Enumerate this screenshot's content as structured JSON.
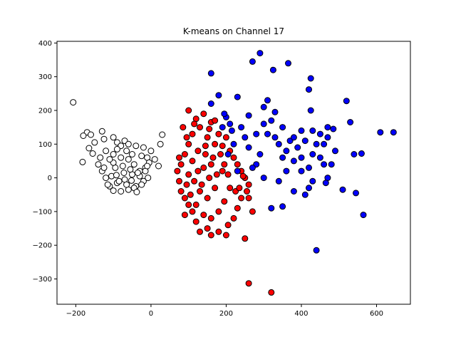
{
  "chart_data": {
    "type": "scatter",
    "title": "K-means on Channel 17",
    "xlabel": "",
    "ylabel": "",
    "xlim": [
      -250,
      690
    ],
    "ylim": [
      -375,
      405
    ],
    "xticks": [
      -200,
      0,
      200,
      400,
      600
    ],
    "yticks": [
      -300,
      -200,
      -100,
      0,
      100,
      200,
      300,
      400
    ],
    "grid": false,
    "legend": "none",
    "series": [
      {
        "color": "#ffffff",
        "points": [
          [
            -207,
            224
          ],
          [
            -170,
            135
          ],
          [
            -180,
            125
          ],
          [
            -160,
            128
          ],
          [
            -182,
            47
          ],
          [
            -165,
            88
          ],
          [
            -150,
            105
          ],
          [
            -155,
            72
          ],
          [
            -130,
            138
          ],
          [
            -125,
            115
          ],
          [
            -100,
            120
          ],
          [
            -90,
            105
          ],
          [
            -80,
            95
          ],
          [
            -70,
            110
          ],
          [
            -60,
            100
          ],
          [
            -40,
            95
          ],
          [
            -20,
            90
          ],
          [
            0,
            80
          ],
          [
            -10,
            60
          ],
          [
            10,
            55
          ],
          [
            20,
            35
          ],
          [
            30,
            128
          ],
          [
            25,
            100
          ],
          [
            -5,
            45
          ],
          [
            -15,
            30
          ],
          [
            -30,
            20
          ],
          [
            -50,
            10
          ],
          [
            -70,
            -5
          ],
          [
            -90,
            -15
          ],
          [
            -110,
            -25
          ],
          [
            -120,
            0
          ],
          [
            -130,
            20
          ],
          [
            -140,
            40
          ],
          [
            -135,
            60
          ],
          [
            -120,
            80
          ],
          [
            -100,
            70
          ],
          [
            -80,
            60
          ],
          [
            -60,
            55
          ],
          [
            -45,
            40
          ],
          [
            -30,
            5
          ],
          [
            -20,
            -10
          ],
          [
            -40,
            -25
          ],
          [
            -60,
            -35
          ],
          [
            -80,
            -40
          ],
          [
            -100,
            -38
          ],
          [
            -115,
            -20
          ],
          [
            -105,
            5
          ],
          [
            -95,
            30
          ],
          [
            -75,
            35
          ],
          [
            -55,
            25
          ],
          [
            -35,
            15
          ],
          [
            -15,
            20
          ],
          [
            -8,
            0
          ],
          [
            -25,
            -20
          ],
          [
            -45,
            -30
          ],
          [
            -65,
            -20
          ],
          [
            -85,
            -10
          ],
          [
            -100,
            45
          ],
          [
            -65,
            80
          ],
          [
            -50,
            70
          ],
          [
            -25,
            65
          ],
          [
            -10,
            35
          ],
          [
            -125,
            30
          ],
          [
            -110,
            55
          ],
          [
            -90,
            85
          ],
          [
            -72,
            15
          ],
          [
            -52,
            -8
          ],
          [
            -38,
            -42
          ],
          [
            -92,
            8
          ]
        ]
      },
      {
        "color": "#ff0000",
        "points": [
          [
            100,
            200
          ],
          [
            120,
            175
          ],
          [
            140,
            190
          ],
          [
            160,
            165
          ],
          [
            155,
            145
          ],
          [
            180,
            130
          ],
          [
            200,
            120
          ],
          [
            190,
            95
          ],
          [
            210,
            80
          ],
          [
            220,
            60
          ],
          [
            230,
            40
          ],
          [
            240,
            20
          ],
          [
            250,
            0
          ],
          [
            260,
            -20
          ],
          [
            240,
            -60
          ],
          [
            230,
            -90
          ],
          [
            220,
            -120
          ],
          [
            200,
            -170
          ],
          [
            180,
            -160
          ],
          [
            160,
            -170
          ],
          [
            130,
            -160
          ],
          [
            120,
            -130
          ],
          [
            110,
            -100
          ],
          [
            100,
            -80
          ],
          [
            90,
            -60
          ],
          [
            80,
            -40
          ],
          [
            75,
            -10
          ],
          [
            70,
            20
          ],
          [
            80,
            40
          ],
          [
            90,
            70
          ],
          [
            100,
            100
          ],
          [
            110,
            130
          ],
          [
            130,
            150
          ],
          [
            150,
            120
          ],
          [
            170,
            100
          ],
          [
            185,
            70
          ],
          [
            195,
            40
          ],
          [
            205,
            10
          ],
          [
            210,
            -30
          ],
          [
            195,
            -70
          ],
          [
            180,
            -100
          ],
          [
            160,
            -120
          ],
          [
            140,
            -110
          ],
          [
            120,
            -80
          ],
          [
            105,
            -50
          ],
          [
            95,
            -20
          ],
          [
            100,
            10
          ],
          [
            110,
            50
          ],
          [
            125,
            80
          ],
          [
            145,
            70
          ],
          [
            160,
            40
          ],
          [
            175,
            10
          ],
          [
            170,
            -30
          ],
          [
            150,
            -60
          ],
          [
            130,
            -40
          ],
          [
            115,
            -10
          ],
          [
            125,
            20
          ],
          [
            140,
            30
          ],
          [
            155,
            0
          ],
          [
            135,
            -20
          ],
          [
            260,
            -313
          ],
          [
            320,
            -340
          ],
          [
            250,
            -180
          ],
          [
            270,
            -100
          ],
          [
            260,
            -60
          ],
          [
            245,
            5
          ],
          [
            225,
            -40
          ],
          [
            85,
            150
          ],
          [
            95,
            120
          ],
          [
            75,
            60
          ],
          [
            90,
            -110
          ],
          [
            150,
            -150
          ],
          [
            205,
            -140
          ],
          [
            190,
            20
          ],
          [
            165,
            60
          ],
          [
            145,
            95
          ],
          [
            115,
            160
          ],
          [
            170,
            170
          ],
          [
            235,
            -30
          ],
          [
            255,
            -40
          ]
        ]
      },
      {
        "color": "#0000ff",
        "points": [
          [
            290,
            370
          ],
          [
            270,
            345
          ],
          [
            325,
            320
          ],
          [
            365,
            340
          ],
          [
            160,
            310
          ],
          [
            230,
            240
          ],
          [
            180,
            245
          ],
          [
            160,
            220
          ],
          [
            310,
            230
          ],
          [
            300,
            210
          ],
          [
            425,
            295
          ],
          [
            420,
            262
          ],
          [
            425,
            200
          ],
          [
            520,
            228
          ],
          [
            530,
            165
          ],
          [
            610,
            135
          ],
          [
            645,
            135
          ],
          [
            560,
            72
          ],
          [
            540,
            70
          ],
          [
            510,
            -35
          ],
          [
            545,
            -45
          ],
          [
            565,
            -110
          ],
          [
            440,
            -215
          ],
          [
            320,
            -90
          ],
          [
            350,
            -85
          ],
          [
            380,
            -40
          ],
          [
            410,
            -50
          ],
          [
            420,
            -30
          ],
          [
            430,
            -10
          ],
          [
            470,
            0
          ],
          [
            465,
            -15
          ],
          [
            480,
            40
          ],
          [
            490,
            80
          ],
          [
            470,
            120
          ],
          [
            485,
            145
          ],
          [
            450,
            130
          ],
          [
            440,
            100
          ],
          [
            430,
            70
          ],
          [
            400,
            60
          ],
          [
            420,
            30
          ],
          [
            380,
            50
          ],
          [
            360,
            80
          ],
          [
            340,
            100
          ],
          [
            330,
            120
          ],
          [
            310,
            130
          ],
          [
            300,
            160
          ],
          [
            320,
            170
          ],
          [
            350,
            150
          ],
          [
            370,
            110
          ],
          [
            390,
            90
          ],
          [
            410,
            110
          ],
          [
            450,
            60
          ],
          [
            460,
            100
          ],
          [
            400,
            140
          ],
          [
            380,
            120
          ],
          [
            360,
            20
          ],
          [
            340,
            -10
          ],
          [
            300,
            0
          ],
          [
            280,
            40
          ],
          [
            260,
            90
          ],
          [
            250,
            120
          ],
          [
            240,
            150
          ],
          [
            210,
            160
          ],
          [
            200,
            180
          ],
          [
            190,
            150
          ],
          [
            260,
            185
          ],
          [
            280,
            130
          ],
          [
            290,
            70
          ],
          [
            270,
            30
          ],
          [
            230,
            20
          ],
          [
            220,
            100
          ],
          [
            215,
            140
          ],
          [
            205,
            70
          ],
          [
            195,
            190
          ],
          [
            330,
            195
          ],
          [
            350,
            60
          ],
          [
            400,
            20
          ],
          [
            460,
            40
          ],
          [
            430,
            140
          ],
          [
            470,
            150
          ]
        ]
      }
    ]
  }
}
